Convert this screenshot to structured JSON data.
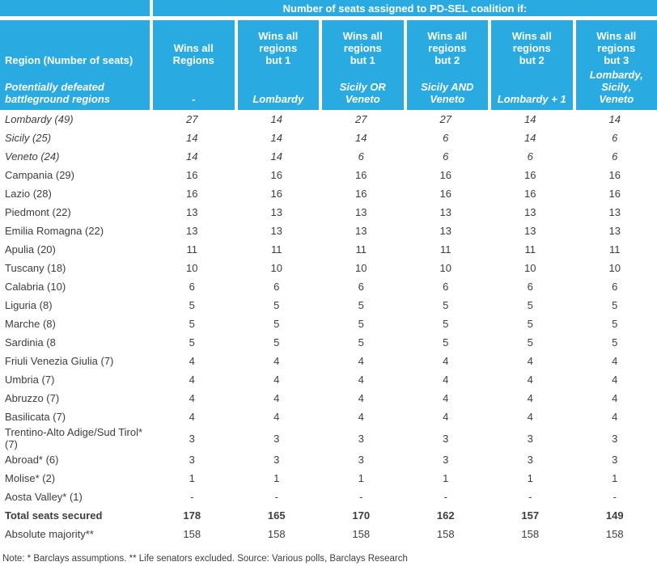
{
  "colors": {
    "header_bg": "#29ABE2",
    "header_text": "#FFFFFF",
    "body_text": "#3D3D3D"
  },
  "table": {
    "top_header": "Number of seats assigned to PD-SEL coalition if:",
    "col1_header": {
      "line1": "Region (Number of seats)",
      "line2": "Potentially defeated\nbattleground regions"
    },
    "columns": [
      {
        "label": "Wins all\nRegions",
        "sublabel": "-"
      },
      {
        "label": "Wins all regions\nbut 1",
        "sublabel": "Lombardy"
      },
      {
        "label": "Wins all regions\nbut 1",
        "sublabel": "Sicily OR\nVeneto"
      },
      {
        "label": "Wins all regions\nbut 2",
        "sublabel": "Sicily AND\nVeneto"
      },
      {
        "label": "Wins all regions\nbut 2",
        "sublabel": "Lombardy + 1"
      },
      {
        "label": "Wins all regions\nbut 3",
        "sublabel": "Lombardy, Sicily,\nVeneto"
      }
    ],
    "rows": [
      {
        "region": "Lombardy (49)",
        "style": "italic",
        "values": [
          "27",
          "14",
          "27",
          "27",
          "14",
          "14"
        ]
      },
      {
        "region": "Sicily (25)",
        "style": "italic",
        "values": [
          "14",
          "14",
          "14",
          "6",
          "14",
          "6"
        ]
      },
      {
        "region": "Veneto (24)",
        "style": "italic",
        "values": [
          "14",
          "14",
          "6",
          "6",
          "6",
          "6"
        ]
      },
      {
        "region": "Campania (29)",
        "style": "normal",
        "values": [
          "16",
          "16",
          "16",
          "16",
          "16",
          "16"
        ]
      },
      {
        "region": "Lazio (28)",
        "style": "normal",
        "values": [
          "16",
          "16",
          "16",
          "16",
          "16",
          "16"
        ]
      },
      {
        "region": "Piedmont (22)",
        "style": "normal",
        "values": [
          "13",
          "13",
          "13",
          "13",
          "13",
          "13"
        ]
      },
      {
        "region": "Emilia Romagna (22)",
        "style": "normal",
        "values": [
          "13",
          "13",
          "13",
          "13",
          "13",
          "13"
        ]
      },
      {
        "region": "Apulia (20)",
        "style": "normal",
        "values": [
          "11",
          "11",
          "11",
          "11",
          "11",
          "11"
        ]
      },
      {
        "region": "Tuscany (18)",
        "style": "normal",
        "values": [
          "10",
          "10",
          "10",
          "10",
          "10",
          "10"
        ]
      },
      {
        "region": "Calabria (10)",
        "style": "normal",
        "values": [
          "6",
          "6",
          "6",
          "6",
          "6",
          "6"
        ]
      },
      {
        "region": "Liguria (8)",
        "style": "normal",
        "values": [
          "5",
          "5",
          "5",
          "5",
          "5",
          "5"
        ]
      },
      {
        "region": "Marche (8)",
        "style": "normal",
        "values": [
          "5",
          "5",
          "5",
          "5",
          "5",
          "5"
        ]
      },
      {
        "region": "Sardinia (8",
        "style": "normal",
        "values": [
          "5",
          "5",
          "5",
          "5",
          "5",
          "5"
        ]
      },
      {
        "region": "Friuli Venezia Giulia (7)",
        "style": "normal",
        "values": [
          "4",
          "4",
          "4",
          "4",
          "4",
          "4"
        ]
      },
      {
        "region": "Umbria (7)",
        "style": "normal",
        "values": [
          "4",
          "4",
          "4",
          "4",
          "4",
          "4"
        ]
      },
      {
        "region": "Abruzzo (7)",
        "style": "normal",
        "values": [
          "4",
          "4",
          "4",
          "4",
          "4",
          "4"
        ]
      },
      {
        "region": "Basilicata (7)",
        "style": "normal",
        "values": [
          "4",
          "4",
          "4",
          "4",
          "4",
          "4"
        ]
      },
      {
        "region": "Trentino-Alto Adige/Sud Tirol* (7)",
        "style": "normal",
        "values": [
          "3",
          "3",
          "3",
          "3",
          "3",
          "3"
        ]
      },
      {
        "region": "Abroad* (6)",
        "style": "normal",
        "values": [
          "3",
          "3",
          "3",
          "3",
          "3",
          "3"
        ]
      },
      {
        "region": "Molise* (2)",
        "style": "normal",
        "values": [
          "1",
          "1",
          "1",
          "1",
          "1",
          "1"
        ]
      },
      {
        "region": "Aosta Valley* (1)",
        "style": "normal",
        "values": [
          "-",
          "-",
          "-",
          "-",
          "-",
          "-"
        ]
      },
      {
        "region": "Total seats secured",
        "style": "bold",
        "values": [
          "178",
          "165",
          "170",
          "162",
          "157",
          "149"
        ]
      },
      {
        "region": "Absolute majority**",
        "style": "normal",
        "values": [
          "158",
          "158",
          "158",
          "158",
          "158",
          "158"
        ]
      }
    ],
    "note": "Note: * Barclays assumptions. ** Life senators excluded. Source: Various polls, Barclays Research"
  }
}
